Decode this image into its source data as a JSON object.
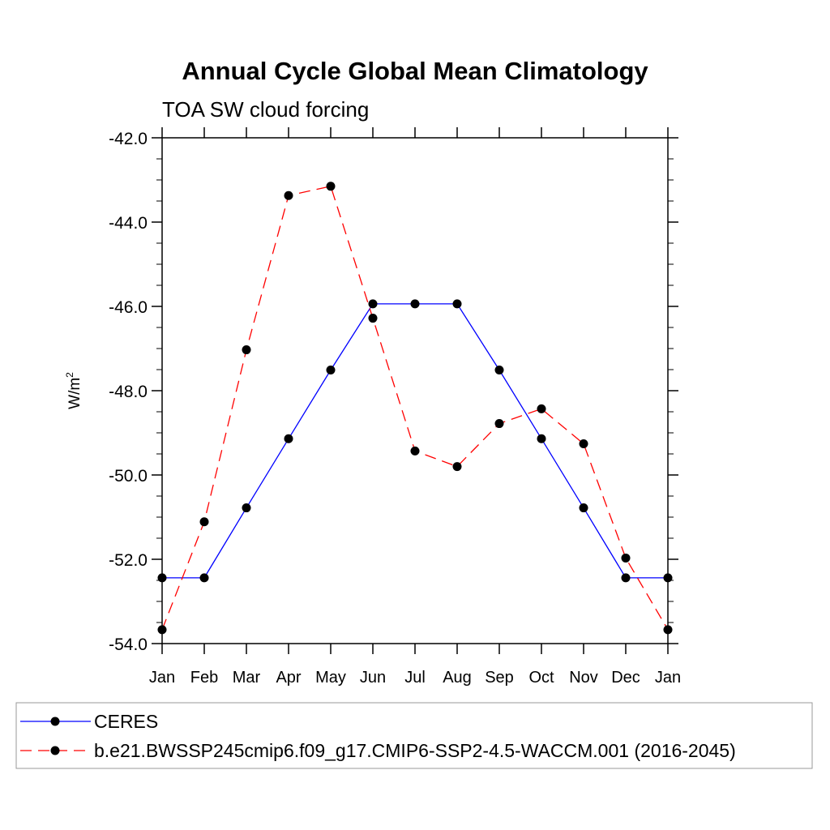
{
  "chart_data": {
    "type": "line",
    "title": "Annual Cycle Global Mean Climatology",
    "subtitle": "TOA SW cloud forcing",
    "xlabel": "",
    "ylabel": "W/m",
    "ylabel_superscript": "2",
    "categories": [
      "Jan",
      "Feb",
      "Mar",
      "Apr",
      "May",
      "Jun",
      "Jul",
      "Aug",
      "Sep",
      "Oct",
      "Nov",
      "Dec",
      "Jan"
    ],
    "ylim": [
      -54.0,
      -42.0
    ],
    "yticks": [
      -54.0,
      -52.0,
      -50.0,
      -48.0,
      -46.0,
      -44.0,
      -42.0
    ],
    "ytick_labels": [
      "-54.0",
      "-52.0",
      "-50.0",
      "-48.0",
      "-46.0",
      "-44.0",
      "-42.0"
    ],
    "grid": false,
    "legend_position": "bottom",
    "series": [
      {
        "name": "CERES",
        "color": "#0000ff",
        "dash": "solid",
        "values": [
          -52.44,
          -52.44,
          -50.78,
          -49.14,
          -47.51,
          -45.94,
          -45.94,
          -45.94,
          -47.51,
          -49.14,
          -50.78,
          -52.44,
          -52.44
        ]
      },
      {
        "name": "b.e21.BWSSP245cmip6.f09_g17.CMIP6-SSP2-4.5-WACCM.001 (2016-2045)",
        "color": "#ff0000",
        "dash": "dashed",
        "values": [
          -53.67,
          -51.11,
          -47.03,
          -43.37,
          -43.15,
          -46.28,
          -49.43,
          -49.8,
          -48.78,
          -48.43,
          -49.26,
          -51.97,
          -53.67
        ]
      }
    ]
  }
}
